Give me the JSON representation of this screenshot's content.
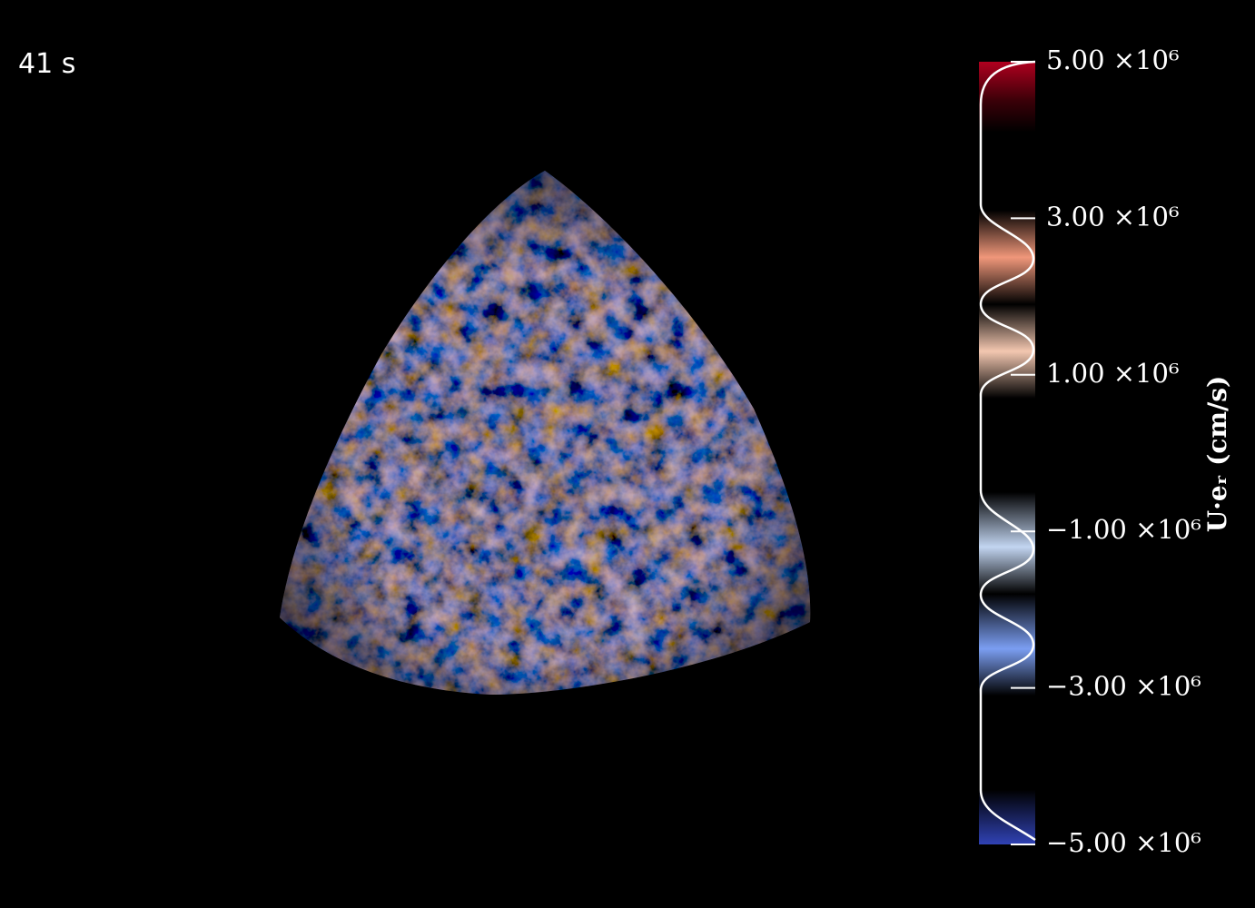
{
  "time_label": "41 s",
  "chart_data": {
    "type": "colorbar",
    "label": "U·eᵣ  (cm/s)",
    "ylim": [
      -5000000,
      5000000
    ],
    "yticks": [
      {
        "value": 5000000,
        "label": "5.00 ×10⁶"
      },
      {
        "value": 3000000,
        "label": "3.00 ×10⁶"
      },
      {
        "value": 1000000,
        "label": "1.00 ×10⁶"
      },
      {
        "value": -1000000,
        "label": "−1.00 ×10⁶"
      },
      {
        "value": -3000000,
        "label": "−3.00 ×10⁶"
      },
      {
        "value": -5000000,
        "label": "−5.00 ×10⁶"
      }
    ]
  }
}
